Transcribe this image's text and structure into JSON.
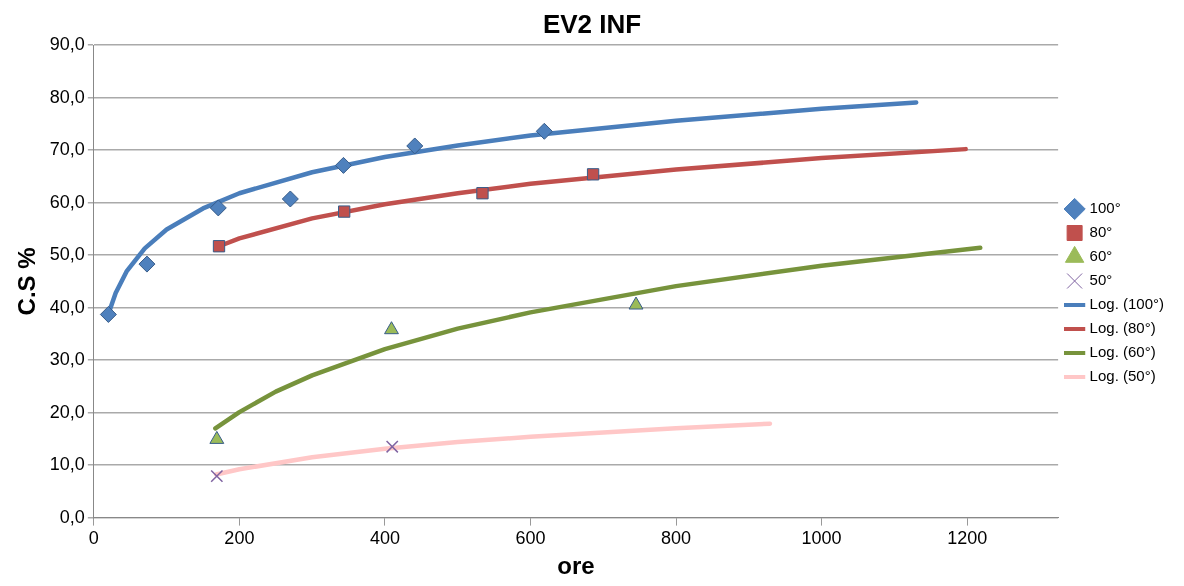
{
  "chart_data": {
    "type": "scatter",
    "title": "EV2 INF",
    "xlabel": "ore",
    "ylabel": "C.S %",
    "xlim": [
      0,
      1325
    ],
    "xticks": [
      0,
      200,
      400,
      600,
      800,
      1000,
      1200
    ],
    "ylim": [
      0,
      90
    ],
    "yticks": [
      {
        "value": 0,
        "label": "0,0"
      },
      {
        "value": 10,
        "label": "10,0"
      },
      {
        "value": 20,
        "label": "20,0"
      },
      {
        "value": 30,
        "label": "30,0"
      },
      {
        "value": 40,
        "label": "40,0"
      },
      {
        "value": 50,
        "label": "50,0"
      },
      {
        "value": 60,
        "label": "60,0"
      },
      {
        "value": 70,
        "label": "70,0"
      },
      {
        "value": 80,
        "label": "80,0"
      },
      {
        "value": 90,
        "label": "90,0"
      }
    ],
    "grid": "y",
    "legend": "right",
    "series": [
      {
        "name": "100°",
        "type": "scatter",
        "marker": "diamond",
        "color": "#4f81bd",
        "x": [
          20,
          73,
          171,
          270,
          343,
          441,
          619
        ],
        "values": [
          38.7,
          48.3,
          59.0,
          60.7,
          67.1,
          70.8,
          73.6
        ]
      },
      {
        "name": "80°",
        "type": "scatter",
        "marker": "square",
        "color": "#c0504d",
        "x": [
          172,
          344,
          534,
          686
        ],
        "values": [
          51.7,
          58.3,
          61.8,
          65.4
        ]
      },
      {
        "name": "60°",
        "type": "scatter",
        "marker": "triangle",
        "color": "#9bbb59",
        "x": [
          169,
          409,
          745
        ],
        "values": [
          14.9,
          35.8,
          40.5
        ]
      },
      {
        "name": "50°",
        "type": "scatter",
        "marker": "cross",
        "color": "#8064a2",
        "x": [
          169,
          410
        ],
        "values": [
          7.9,
          13.5
        ]
      },
      {
        "name": "Log. (100°)",
        "type": "line",
        "marker": "none",
        "color": "#4a7ebb",
        "x": [
          20,
          30,
          45,
          70,
          100,
          150,
          200,
          300,
          400,
          500,
          600,
          800,
          1000,
          1130
        ],
        "values": [
          38.8,
          42.8,
          46.9,
          51.3,
          54.9,
          58.9,
          61.8,
          65.8,
          68.7,
          70.9,
          72.8,
          75.6,
          77.9,
          79.1
        ]
      },
      {
        "name": "Log. (80°)",
        "type": "line",
        "marker": "none",
        "color": "#c0504d",
        "x": [
          172,
          200,
          300,
          400,
          500,
          600,
          800,
          1000,
          1198
        ],
        "values": [
          51.7,
          53.2,
          57.0,
          59.7,
          61.8,
          63.6,
          66.3,
          68.5,
          70.2
        ]
      },
      {
        "name": "Log. (60°)",
        "type": "line",
        "marker": "none",
        "color": "#77933c",
        "x": [
          167,
          200,
          250,
          300,
          400,
          500,
          600,
          800,
          1000,
          1218
        ],
        "values": [
          17.0,
          20.1,
          24.0,
          27.1,
          32.1,
          36.0,
          39.1,
          44.1,
          48.0,
          51.4
        ]
      },
      {
        "name": "Log. (50°)",
        "type": "line",
        "marker": "none",
        "color": "#ffc7c7",
        "x": [
          168,
          200,
          300,
          400,
          500,
          600,
          800,
          929
        ],
        "values": [
          8.2,
          9.2,
          11.5,
          13.1,
          14.4,
          15.4,
          17.0,
          17.9
        ]
      }
    ]
  }
}
